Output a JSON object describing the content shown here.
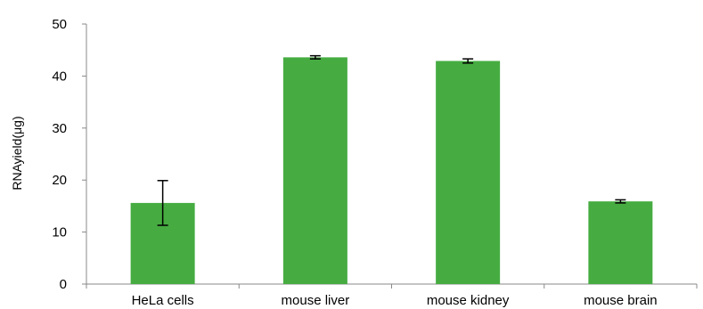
{
  "chart_data": {
    "type": "bar",
    "title": "",
    "xlabel": "",
    "ylabel": "RNAyield(μg)",
    "categories": [
      "HeLa cells",
      "mouse liver",
      "mouse kidney",
      "mouse brain"
    ],
    "values": [
      15.6,
      43.6,
      42.9,
      15.9
    ],
    "error": [
      4.3,
      0.3,
      0.4,
      0.3
    ],
    "ylim": [
      0,
      50
    ],
    "yticks": [
      "0",
      "10",
      "20",
      "30",
      "40",
      "50"
    ],
    "grid": false,
    "legend": "none",
    "bar_color": "#46ac41",
    "error_bar_color": "#000000"
  }
}
